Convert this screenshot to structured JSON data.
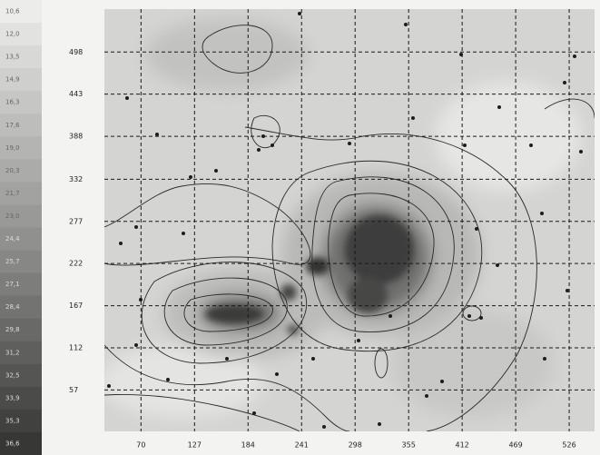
{
  "chart_data": {
    "type": "contour",
    "xlim": [
      31,
      553
    ],
    "ylim": [
      3,
      554
    ],
    "xticks": [
      70,
      127,
      184,
      241,
      298,
      355,
      412,
      469,
      526
    ],
    "yticks": [
      57,
      112,
      167,
      222,
      277,
      332,
      388,
      443,
      498
    ],
    "grid": true,
    "colorbar": {
      "colors": [
        "#ececea",
        "#e2e2e0",
        "#d8d8d6",
        "#cfcfcd",
        "#c6c6c4",
        "#bdbdbb",
        "#b4b4b2",
        "#ababa9",
        "#a2a2a0",
        "#999997",
        "#90908e",
        "#878785",
        "#7d7d7b",
        "#737371",
        "#696967",
        "#5f5f5d",
        "#555553",
        "#4b4b49",
        "#414140",
        "#373736"
      ],
      "ticks": [
        {
          "value": 10.6,
          "label": "10,6"
        },
        {
          "value": 12.0,
          "label": "12,0"
        },
        {
          "value": 13.5,
          "label": "13,5"
        },
        {
          "value": 14.9,
          "label": "14,9"
        },
        {
          "value": 16.3,
          "label": "16,3"
        },
        {
          "value": 17.6,
          "label": "17,6"
        },
        {
          "value": 19.0,
          "label": "19,0"
        },
        {
          "value": 20.3,
          "label": "20,3"
        },
        {
          "value": 21.7,
          "label": "21,7"
        },
        {
          "value": 23.0,
          "label": "23,0"
        },
        {
          "value": 24.4,
          "label": "24,4"
        },
        {
          "value": 25.7,
          "label": "25,7"
        },
        {
          "value": 27.1,
          "label": "27,1"
        },
        {
          "value": 28.4,
          "label": "28,4"
        },
        {
          "value": 29.8,
          "label": "29,8"
        },
        {
          "value": 31.2,
          "label": "31,2"
        },
        {
          "value": 32.5,
          "label": "32,5"
        },
        {
          "value": 33.9,
          "label": "33,9"
        },
        {
          "value": 35.3,
          "label": "35,3"
        },
        {
          "value": 36.6,
          "label": "36,6"
        }
      ]
    }
  }
}
